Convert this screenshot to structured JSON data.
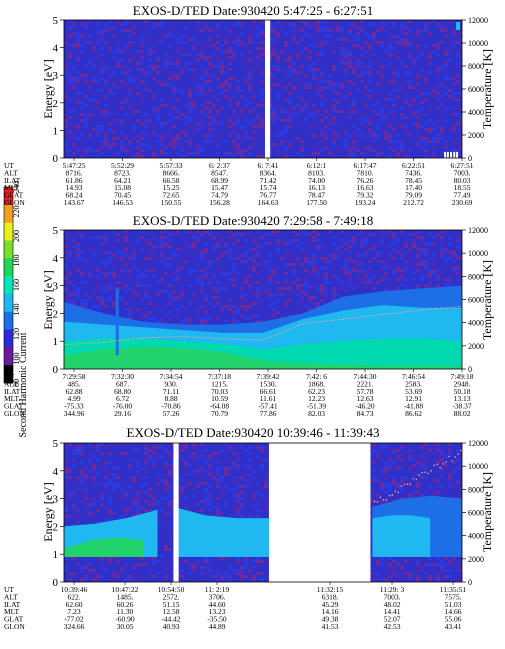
{
  "chart_data": [
    {
      "type": "heatmap",
      "title": "EXOS-D/TED   Date:930420  5:47:25 - 6:27:51",
      "ylabel": "Energy [eV]",
      "y2label": "Temperature [K]",
      "ylim": [
        0,
        5
      ],
      "y2lim": [
        0,
        12000
      ],
      "yticks": [
        "0",
        "1",
        "2",
        "3",
        "4",
        "5"
      ],
      "y2ticks": [
        "0",
        "2000",
        "4000",
        "6000",
        "8000",
        "10000",
        "12000"
      ],
      "row_labels": [
        "UT",
        "ALT",
        "ILAT",
        "MLT",
        "GLAT",
        "GLON"
      ],
      "columns": [
        [
          "5:47:25",
          "8716.",
          "61.86",
          "14.93",
          "68.24",
          "143.67"
        ],
        [
          "5:52:29",
          "8723.",
          "64.21",
          "15.08",
          "70.45",
          "146.53"
        ],
        [
          "5:57:33",
          "8666.",
          "66.58",
          "15.25",
          "72.65",
          "150.55"
        ],
        [
          "6: 2:37",
          "8547.",
          "68.99",
          "15.47",
          "74.79",
          "156.28"
        ],
        [
          "6: 7:41",
          "8364.",
          "71.42",
          "15.74",
          "76.77",
          "164.63"
        ],
        [
          "6:12:1",
          "8103.",
          "74.00",
          "16.13",
          "78.47",
          "177.50"
        ],
        [
          "6:17:47",
          "7810.",
          "76.26",
          "16.63",
          "79.32",
          "193.24"
        ],
        [
          "6:22:51",
          "7436.",
          "78.45",
          "17.40",
          "79.09",
          "212.72"
        ],
        [
          "6:27:51",
          "7003.",
          "80.03",
          "18.55",
          "77.49",
          "230.69"
        ]
      ],
      "data_gaps": [
        [
          0.505,
          0.518
        ]
      ]
    },
    {
      "type": "heatmap",
      "title": "EXOS-D/TED   Date:930420  7:29:58 - 7:49:18",
      "ylabel": "Energy [eV]",
      "y2label": "Temperature [K]",
      "ylim": [
        0,
        5
      ],
      "y2lim": [
        0,
        12000
      ],
      "yticks": [
        "0",
        "1",
        "2",
        "3",
        "4",
        "5"
      ],
      "y2ticks": [
        "0",
        "2000",
        "4000",
        "6000",
        "8000",
        "10000",
        "12000"
      ],
      "row_labels": [
        "UT",
        "ALT",
        "ILAT",
        "MLT",
        "GLAT",
        "GLON"
      ],
      "columns": [
        [
          "7:29:58",
          "485.",
          "62.88",
          "4.99",
          "-75.33",
          "344.96"
        ],
        [
          "7:32:30",
          "687.",
          "68.80",
          "6.72",
          "-76.00",
          "29.16"
        ],
        [
          "7:34:54",
          "930.",
          "71.11",
          "8.88",
          "-70.86",
          "57.26"
        ],
        [
          "7:37:18",
          "1215.",
          "70.03",
          "10.59",
          "-64.08",
          "70.79"
        ],
        [
          "7:39:42",
          "1530.",
          "66.61",
          "11.61",
          "-57.41",
          "77.86"
        ],
        [
          "7:42: 6",
          "1868.",
          "62.23",
          "12.23",
          "-51.39",
          "82.03"
        ],
        [
          "7:44:30",
          "2221.",
          "57.78",
          "12.63",
          "-46.20",
          "84.73"
        ],
        [
          "7:46:54",
          "2583.",
          "53.69",
          "12.91",
          "-41.88",
          "86.62"
        ],
        [
          "7:49:18",
          "2948.",
          "50.18",
          "13.13",
          "-38.37",
          "88.02"
        ]
      ],
      "temperature_trace": [
        [
          0,
          2100
        ],
        [
          0.1,
          2300
        ],
        [
          0.2,
          2700
        ],
        [
          0.3,
          2800
        ],
        [
          0.4,
          2600
        ],
        [
          0.5,
          2500
        ],
        [
          0.55,
          3200
        ],
        [
          0.6,
          3900
        ],
        [
          0.7,
          4300
        ],
        [
          0.8,
          4700
        ],
        [
          0.9,
          5100
        ],
        [
          1,
          5400
        ]
      ],
      "data_gaps": []
    },
    {
      "type": "heatmap",
      "title": "EXOS-D/TED   Date:930420  10:39:46 - 11:39:43",
      "ylabel": "Energy [eV]",
      "y2label": "Temperature [K]",
      "ylim": [
        0,
        5
      ],
      "y2lim": [
        0,
        12000
      ],
      "yticks": [
        "0",
        "1",
        "2",
        "3",
        "4",
        "5"
      ],
      "y2ticks": [
        "0",
        "2000",
        "4000",
        "6000",
        "8000",
        "10000",
        "12000"
      ],
      "row_labels": [
        "UT",
        "ALT",
        "ILAT",
        "MLT",
        "GLAT",
        "GLON"
      ],
      "columns": [
        [
          "10:39:46",
          "622.",
          "62.60",
          "7.23",
          "-77.02",
          "324.66"
        ],
        [
          "10:47:22",
          "1485.",
          "60.26",
          "11.30",
          "-60.90",
          "30.05"
        ],
        [
          "10:54:50",
          "2572.",
          "51.15",
          "12.58",
          "-44.42",
          "40.93"
        ],
        [
          "11: 2:19",
          "3706.",
          "44.60",
          "13.23",
          "-35.50",
          "44.89"
        ],
        [
          "11:32:15",
          "6318.",
          "45.29",
          "14.16",
          "49.38",
          "41.53"
        ],
        [
          "11:29: 3",
          "7003.",
          "48.02",
          "14.41",
          "52.07",
          "42.53"
        ],
        [
          "11:35:51",
          "7575.",
          "51.03",
          "14.66",
          "55.06",
          "43.41"
        ]
      ],
      "data_gaps": [
        [
          0.0,
          0.0
        ],
        [
          0.275,
          0.288
        ],
        [
          0.515,
          0.77
        ]
      ]
    }
  ],
  "colorbar": {
    "label": "Second Harmonic Current",
    "ticks": [
      "80",
      "100",
      "120",
      "140",
      "160",
      "180",
      "200",
      "220",
      "240"
    ],
    "colors": [
      "#000000",
      "#6a1b9a",
      "#2b2bd8",
      "#1c6fe6",
      "#1fb8f0",
      "#00e8b8",
      "#1fd65a",
      "#7be02a",
      "#e8f020",
      "#f0a020",
      "#e02020"
    ]
  },
  "colors": {
    "background_low": "#3030c8",
    "background_mid": "#5a2aa8",
    "signal_low": "#1fc0e8",
    "signal_high": "#21d36a"
  }
}
